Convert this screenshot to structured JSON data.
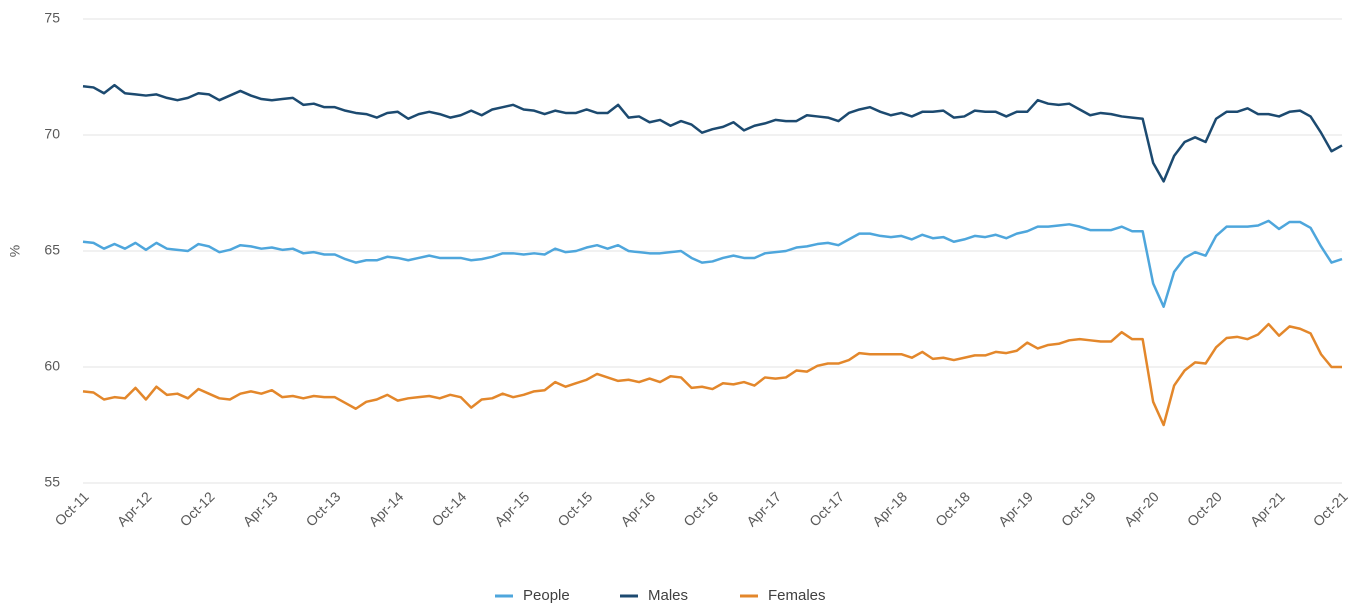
{
  "chart_data": {
    "type": "line",
    "y_label": "%",
    "categories": [
      "Oct-11",
      null,
      null,
      null,
      null,
      null,
      "Apr-12",
      null,
      null,
      null,
      null,
      null,
      "Oct-12",
      null,
      null,
      null,
      null,
      null,
      "Apr-13",
      null,
      null,
      null,
      null,
      null,
      "Oct-13",
      null,
      null,
      null,
      null,
      null,
      "Apr-14",
      null,
      null,
      null,
      null,
      null,
      "Oct-14",
      null,
      null,
      null,
      null,
      null,
      "Apr-15",
      null,
      null,
      null,
      null,
      null,
      "Oct-15",
      null,
      null,
      null,
      null,
      null,
      "Apr-16",
      null,
      null,
      null,
      null,
      null,
      "Oct-16",
      null,
      null,
      null,
      null,
      null,
      "Apr-17",
      null,
      null,
      null,
      null,
      null,
      "Oct-17",
      null,
      null,
      null,
      null,
      null,
      "Apr-18",
      null,
      null,
      null,
      null,
      null,
      "Oct-18",
      null,
      null,
      null,
      null,
      null,
      "Apr-19",
      null,
      null,
      null,
      null,
      null,
      "Oct-19",
      null,
      null,
      null,
      null,
      null,
      "Apr-20",
      null,
      null,
      null,
      null,
      null,
      "Oct-20",
      null,
      null,
      null,
      null,
      null,
      "Apr-21",
      null,
      null,
      null,
      null,
      null,
      "Oct-21"
    ],
    "series": [
      {
        "name": "People",
        "color": "#4ea6dc",
        "values": [
          65.4,
          65.35,
          65.1,
          65.3,
          65.1,
          65.35,
          65.05,
          65.35,
          65.1,
          65.05,
          65.0,
          65.3,
          65.2,
          64.95,
          65.05,
          65.25,
          65.2,
          65.1,
          65.15,
          65.05,
          65.1,
          64.9,
          64.95,
          64.85,
          64.85,
          64.65,
          64.5,
          64.6,
          64.6,
          64.75,
          64.7,
          64.6,
          64.7,
          64.8,
          64.7,
          64.7,
          64.7,
          64.6,
          64.65,
          64.75,
          64.9,
          64.9,
          64.85,
          64.9,
          64.85,
          65.1,
          64.95,
          65.0,
          65.15,
          65.25,
          65.1,
          65.25,
          65.0,
          64.95,
          64.9,
          64.9,
          64.95,
          65.0,
          64.7,
          64.5,
          64.55,
          64.7,
          64.8,
          64.7,
          64.7,
          64.9,
          64.95,
          65.0,
          65.15,
          65.2,
          65.3,
          65.35,
          65.25,
          65.5,
          65.75,
          65.75,
          65.65,
          65.6,
          65.65,
          65.5,
          65.7,
          65.55,
          65.6,
          65.4,
          65.5,
          65.65,
          65.6,
          65.7,
          65.55,
          65.75,
          65.85,
          66.05,
          66.05,
          66.1,
          66.15,
          66.05,
          65.9,
          65.9,
          65.9,
          66.05,
          65.85,
          65.85,
          63.6,
          62.6,
          64.1,
          64.7,
          64.95,
          64.8,
          65.65,
          66.05,
          66.05,
          66.05,
          66.1,
          66.3,
          65.95,
          66.25,
          66.25,
          66.0,
          65.2,
          64.5,
          64.65
        ]
      },
      {
        "name": "Males",
        "color": "#1c4a70",
        "values": [
          72.1,
          72.05,
          71.8,
          72.15,
          71.8,
          71.75,
          71.7,
          71.75,
          71.6,
          71.5,
          71.6,
          71.8,
          71.75,
          71.5,
          71.7,
          71.9,
          71.7,
          71.55,
          71.5,
          71.55,
          71.6,
          71.3,
          71.35,
          71.2,
          71.2,
          71.05,
          70.95,
          70.9,
          70.75,
          70.95,
          71.0,
          70.7,
          70.9,
          71.0,
          70.9,
          70.75,
          70.85,
          71.05,
          70.85,
          71.1,
          71.2,
          71.3,
          71.1,
          71.05,
          70.9,
          71.05,
          70.95,
          70.95,
          71.1,
          70.95,
          70.95,
          71.3,
          70.75,
          70.8,
          70.55,
          70.65,
          70.4,
          70.6,
          70.45,
          70.1,
          70.25,
          70.35,
          70.55,
          70.2,
          70.4,
          70.5,
          70.65,
          70.6,
          70.6,
          70.85,
          70.8,
          70.75,
          70.6,
          70.95,
          71.1,
          71.2,
          71.0,
          70.85,
          70.95,
          70.8,
          71.0,
          71.0,
          71.05,
          70.75,
          70.8,
          71.05,
          71.0,
          71.0,
          70.8,
          71.0,
          71.0,
          71.5,
          71.35,
          71.3,
          71.35,
          71.1,
          70.85,
          70.95,
          70.9,
          70.8,
          70.75,
          70.7,
          68.8,
          68.0,
          69.1,
          69.7,
          69.9,
          69.7,
          70.7,
          71.0,
          71.0,
          71.15,
          70.9,
          70.9,
          70.8,
          71.0,
          71.05,
          70.8,
          70.1,
          69.3,
          69.55
        ]
      },
      {
        "name": "Females",
        "color": "#e3872b",
        "values": [
          58.95,
          58.9,
          58.6,
          58.7,
          58.65,
          59.1,
          58.6,
          59.15,
          58.8,
          58.85,
          58.65,
          59.05,
          58.85,
          58.65,
          58.6,
          58.85,
          58.95,
          58.85,
          59.0,
          58.7,
          58.75,
          58.65,
          58.75,
          58.7,
          58.7,
          58.45,
          58.2,
          58.5,
          58.6,
          58.8,
          58.55,
          58.65,
          58.7,
          58.75,
          58.65,
          58.8,
          58.7,
          58.25,
          58.6,
          58.65,
          58.85,
          58.7,
          58.8,
          58.95,
          59.0,
          59.35,
          59.15,
          59.3,
          59.45,
          59.7,
          59.55,
          59.4,
          59.45,
          59.35,
          59.5,
          59.35,
          59.6,
          59.55,
          59.1,
          59.15,
          59.05,
          59.3,
          59.25,
          59.35,
          59.2,
          59.55,
          59.5,
          59.55,
          59.85,
          59.8,
          60.05,
          60.15,
          60.15,
          60.3,
          60.6,
          60.55,
          60.55,
          60.55,
          60.55,
          60.4,
          60.65,
          60.35,
          60.4,
          60.3,
          60.4,
          60.5,
          60.5,
          60.65,
          60.6,
          60.7,
          61.05,
          60.8,
          60.95,
          61.0,
          61.15,
          61.2,
          61.15,
          61.1,
          61.1,
          61.5,
          61.2,
          61.2,
          58.5,
          57.5,
          59.2,
          59.85,
          60.2,
          60.15,
          60.85,
          61.25,
          61.3,
          61.2,
          61.4,
          61.85,
          61.35,
          61.75,
          61.65,
          61.45,
          60.55,
          60.0,
          60.0
        ]
      }
    ],
    "ylim": [
      55,
      75
    ],
    "yticks": [
      55,
      60,
      65,
      70,
      75
    ],
    "grid": true,
    "legend": "bottom"
  }
}
